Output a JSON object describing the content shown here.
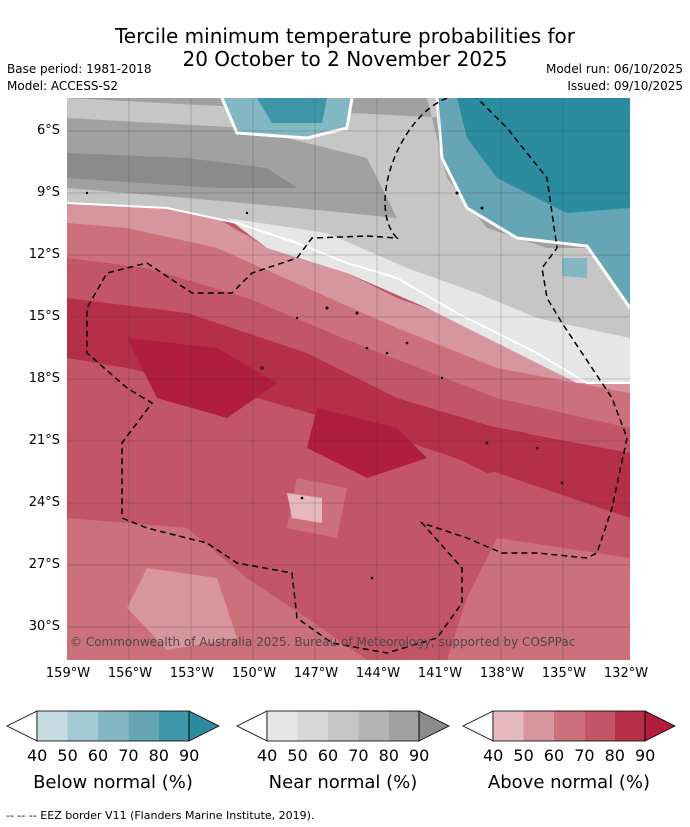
{
  "title": {
    "line1": "Tercile minimum temperature probabilities for",
    "line2": "20 October to 2 November 2025"
  },
  "meta": {
    "base_period": "Base period: 1981-2018",
    "model": "Model: ACCESS-S2",
    "model_run": "Model run: 06/10/2025",
    "issued": "Issued: 09/10/2025"
  },
  "map": {
    "copyright": "© Commonwealth of Australia 2025. Bureau of Meteorology, supported by COSPPac",
    "lat_labels": [
      "6°S",
      "9°S",
      "12°S",
      "15°S",
      "18°S",
      "21°S",
      "24°S",
      "27°S",
      "30°S"
    ],
    "lon_labels": [
      "159°W",
      "156°W",
      "153°W",
      "150°W",
      "147°W",
      "144°W",
      "141°W",
      "138°W",
      "135°W",
      "132°W"
    ]
  },
  "colorbars": [
    {
      "title": "Below normal (%)",
      "ticks": [
        "40",
        "50",
        "60",
        "70",
        "80",
        "90"
      ],
      "colors": [
        "#c4dce2",
        "#a3c9d3",
        "#84b7c4",
        "#66a5b5",
        "#3e96a8",
        "#2b8ca0"
      ]
    },
    {
      "title": "Near normal (%)",
      "ticks": [
        "40",
        "50",
        "60",
        "70",
        "80",
        "90"
      ],
      "colors": [
        "#e6e6e6",
        "#d7d7d7",
        "#c6c6c6",
        "#b4b4b4",
        "#a1a1a1",
        "#8b8b8b"
      ]
    },
    {
      "title": "Above normal (%)",
      "ticks": [
        "40",
        "50",
        "60",
        "70",
        "80",
        "90"
      ],
      "colors": [
        "#e6b9bf",
        "#d7959e",
        "#cc707c",
        "#c25666",
        "#b52f47",
        "#b11d3e"
      ]
    }
  ],
  "footer": "--  --  -- EEZ border V11 (Flanders Marine Institute, 2019)."
}
